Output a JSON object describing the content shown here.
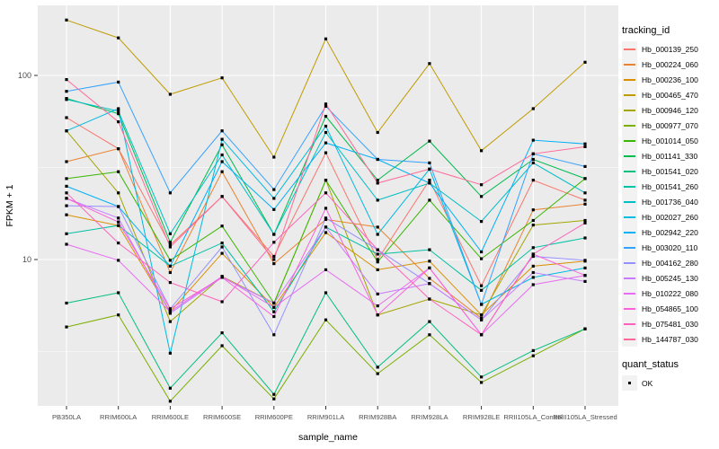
{
  "figure": {
    "background": "#FFFFFF",
    "panel_background": "#EBEBEB",
    "grid_color": "#FFFFFF",
    "point_color": "#000000",
    "tick_label_color": "#4D4D4D"
  },
  "legend": {
    "tracking_title": "tracking_id",
    "quant_title": "quant_status",
    "quant_items": [
      {
        "label": "OK",
        "shape": "black-square"
      }
    ]
  },
  "chart_data": {
    "type": "line",
    "title": "",
    "xlabel": "sample_name",
    "ylabel": "FPKM + 1",
    "y_scale": "log10",
    "ylim": [
      1.6,
      240
    ],
    "y_major_ticks": [
      100,
      10
    ],
    "y_minor_gridlines": [
      31.623,
      3.1623
    ],
    "grid": true,
    "legend_position": "right",
    "point_shape": "black-square",
    "categories": [
      "PB350LA",
      "RRIM600LA",
      "RRIM600LE",
      "RRIM600SE",
      "RRIM600PE",
      "RRIM901LA",
      "RRIM928BA",
      "RRIM928LA",
      "RRIM928LE",
      "RRII105LA_Control",
      "RRII105LA_Stressed"
    ],
    "series": [
      {
        "name": "Hb_000139_250",
        "color": "#F8766D",
        "values": [
          59,
          40,
          12,
          22,
          10.4,
          38,
          10,
          27,
          7.2,
          27,
          21
        ]
      },
      {
        "name": "Hb_000224_060",
        "color": "#EA8331",
        "values": [
          34,
          40,
          8.5,
          30,
          9.5,
          16.5,
          15,
          7.9,
          4.8,
          18.6,
          20
        ]
      },
      {
        "name": "Hb_000236_100",
        "color": "#D89000",
        "values": [
          17.5,
          15.3,
          5.2,
          10.8,
          5.5,
          14,
          8.8,
          9.8,
          5.0,
          9.2,
          9.8
        ]
      },
      {
        "name": "Hb_000465_470",
        "color": "#C09B00",
        "values": [
          200,
          160,
          79,
          97,
          36,
          158,
          49,
          116,
          39,
          66,
          118
        ]
      },
      {
        "name": "Hb_000946_120",
        "color": "#A3A500",
        "values": [
          50,
          23,
          4.6,
          8.1,
          5.8,
          27,
          5.0,
          6.1,
          5.0,
          15.4,
          16.3
        ]
      },
      {
        "name": "Hb_000977_070",
        "color": "#7CAE00",
        "values": [
          4.3,
          5.0,
          1.7,
          3.4,
          1.75,
          4.7,
          2.4,
          3.9,
          2.15,
          3.0,
          4.2
        ]
      },
      {
        "name": "Hb_001014_050",
        "color": "#39B600",
        "values": [
          27.5,
          30,
          9.9,
          15.2,
          5.8,
          27,
          9.7,
          21,
          10.1,
          16.3,
          27.5
        ]
      },
      {
        "name": "Hb_001141_330",
        "color": "#00BB4E",
        "values": [
          75,
          62,
          12.4,
          42,
          13.7,
          60,
          27,
          44,
          22,
          35,
          27.5
        ]
      },
      {
        "name": "Hb_001541_020",
        "color": "#00BF7D",
        "values": [
          5.8,
          6.6,
          2.0,
          4.0,
          1.85,
          6.6,
          2.6,
          4.6,
          2.3,
          3.2,
          4.2
        ]
      },
      {
        "name": "Hb_001541_260",
        "color": "#00C1A3",
        "values": [
          13.8,
          15.3,
          9.2,
          12.3,
          5.2,
          15,
          10.7,
          11.3,
          6.8,
          11.6,
          13.1
        ]
      },
      {
        "name": "Hb_001736_040",
        "color": "#00BFC4",
        "values": [
          74,
          64,
          13.8,
          37,
          13.7,
          49,
          21,
          26,
          16.1,
          33.5,
          23
        ]
      },
      {
        "name": "Hb_002027_260",
        "color": "#00BAE0",
        "values": [
          50,
          66,
          3.1,
          45,
          21.5,
          53,
          13.7,
          31,
          5.7,
          8.0,
          9.0
        ]
      },
      {
        "name": "Hb_002942_220",
        "color": "#00B0F6",
        "values": [
          25,
          19.4,
          9.2,
          34,
          18.7,
          43,
          35,
          26,
          11.0,
          44.5,
          42.5
        ]
      },
      {
        "name": "Hb_003020_110",
        "color": "#35A2FF",
        "values": [
          82,
          92,
          23,
          50,
          24,
          68,
          35,
          33.5,
          5.7,
          37.5,
          32
        ]
      },
      {
        "name": "Hb_004162_280",
        "color": "#9590FF",
        "values": [
          19.6,
          19.4,
          5.4,
          11.7,
          3.9,
          16.8,
          11.3,
          7.4,
          4.7,
          10.4,
          9.9
        ]
      },
      {
        "name": "Hb_005245_130",
        "color": "#C77CFF",
        "values": [
          21.5,
          16.8,
          5.1,
          8.0,
          5.8,
          15,
          6.5,
          7.4,
          4.7,
          8.5,
          7.6
        ]
      },
      {
        "name": "Hb_010222_080",
        "color": "#E76BF3",
        "values": [
          12.1,
          9.9,
          5.2,
          8.1,
          5.5,
          8.8,
          5.6,
          9.0,
          3.9,
          7.3,
          8.2
        ]
      },
      {
        "name": "Hb_054865_100",
        "color": "#FA62DB",
        "values": [
          21.5,
          16.0,
          5.4,
          8.0,
          4.9,
          19,
          5.0,
          9.0,
          3.9,
          10.7,
          8.2
        ]
      },
      {
        "name": "Hb_075481_030",
        "color": "#FF62BC",
        "values": [
          23,
          12.3,
          7.5,
          5.9,
          12.4,
          23,
          11.3,
          6.1,
          3.9,
          10.7,
          15.8
        ]
      },
      {
        "name": "Hb_144787_030",
        "color": "#FF6A98",
        "values": [
          95,
          56,
          11.7,
          22,
          10.0,
          70,
          26,
          31,
          25.5,
          37.5,
          41
        ]
      }
    ]
  }
}
